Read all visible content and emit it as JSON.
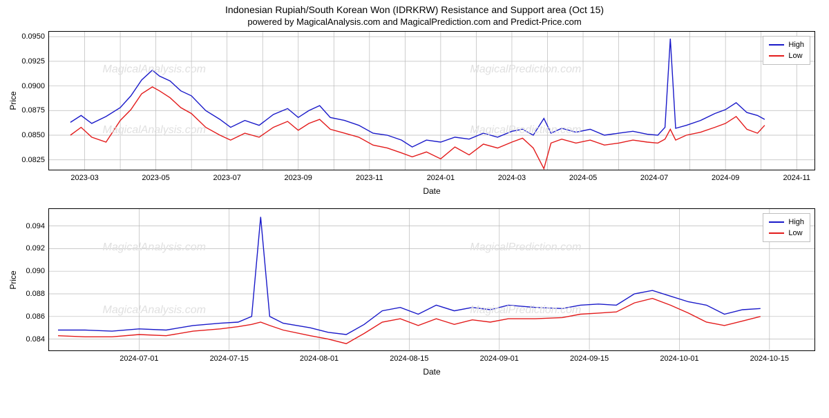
{
  "title": "Indonesian Rupiah/South Korean Won (IDRKRW) Resistance and Support area (Oct 15)",
  "subtitle": "powered by MagicalAnalysis.com and MagicalPrediction.com and Predict-Price.com",
  "watermark_sites": [
    "MagicalAnalysis.com",
    "MagicalPrediction.com"
  ],
  "legend": {
    "high_label": "High",
    "low_label": "Low"
  },
  "colors": {
    "high": "#1919c9",
    "low": "#e31b1b",
    "grid": "#b9b9b9",
    "border": "#000000",
    "watermark": "#e0e0e0",
    "bg": "#ffffff"
  },
  "panel_top": {
    "ylabel": "Price",
    "xlabel": "Date",
    "ylim": [
      0.0815,
      0.0955
    ],
    "yticks": [
      0.0825,
      0.085,
      0.0875,
      0.09,
      0.0925,
      0.095
    ],
    "ytick_labels": [
      "0.0825",
      "0.0850",
      "0.0875",
      "0.0900",
      "0.0925",
      "0.0950"
    ],
    "xlim": [
      0,
      21.5
    ],
    "xticks": [
      1,
      2,
      3,
      4,
      5,
      6,
      7,
      8,
      9,
      10,
      11,
      12,
      13,
      14,
      15,
      16,
      17,
      18,
      19,
      20,
      21
    ],
    "xtick_labels_at": [
      1,
      3,
      5,
      7,
      9,
      11,
      13,
      15,
      17,
      19,
      21
    ],
    "xtick_labels": [
      "2023-03",
      "2023-05",
      "2023-07",
      "2023-09",
      "2023-11",
      "2024-01",
      "2024-03",
      "2024-05",
      "2024-07",
      "2024-09",
      "2024-11"
    ],
    "series_high": [
      [
        0.6,
        0.0863
      ],
      [
        0.9,
        0.087
      ],
      [
        1.2,
        0.0862
      ],
      [
        1.6,
        0.0869
      ],
      [
        2.0,
        0.0878
      ],
      [
        2.3,
        0.089
      ],
      [
        2.6,
        0.0906
      ],
      [
        2.9,
        0.0916
      ],
      [
        3.1,
        0.091
      ],
      [
        3.4,
        0.0905
      ],
      [
        3.7,
        0.0895
      ],
      [
        4.0,
        0.089
      ],
      [
        4.4,
        0.0875
      ],
      [
        4.8,
        0.0866
      ],
      [
        5.1,
        0.0858
      ],
      [
        5.5,
        0.0865
      ],
      [
        5.9,
        0.086
      ],
      [
        6.3,
        0.0871
      ],
      [
        6.7,
        0.0877
      ],
      [
        7.0,
        0.0868
      ],
      [
        7.3,
        0.0875
      ],
      [
        7.6,
        0.088
      ],
      [
        7.9,
        0.0868
      ],
      [
        8.3,
        0.0865
      ],
      [
        8.7,
        0.086
      ],
      [
        9.1,
        0.0852
      ],
      [
        9.5,
        0.085
      ],
      [
        9.9,
        0.0845
      ],
      [
        10.2,
        0.0838
      ],
      [
        10.6,
        0.0845
      ],
      [
        11.0,
        0.0843
      ],
      [
        11.4,
        0.0848
      ],
      [
        11.8,
        0.0846
      ],
      [
        12.2,
        0.0852
      ],
      [
        12.6,
        0.0848
      ],
      [
        13.0,
        0.0854
      ],
      [
        13.3,
        0.0856
      ],
      [
        13.6,
        0.085
      ],
      [
        13.9,
        0.0867
      ],
      [
        14.1,
        0.0852
      ],
      [
        14.4,
        0.0857
      ],
      [
        14.8,
        0.0853
      ],
      [
        15.2,
        0.0856
      ],
      [
        15.6,
        0.085
      ],
      [
        16.0,
        0.0852
      ],
      [
        16.4,
        0.0854
      ],
      [
        16.8,
        0.0851
      ],
      [
        17.1,
        0.085
      ],
      [
        17.3,
        0.0858
      ],
      [
        17.45,
        0.0948
      ],
      [
        17.6,
        0.0857
      ],
      [
        17.9,
        0.086
      ],
      [
        18.3,
        0.0865
      ],
      [
        18.7,
        0.0872
      ],
      [
        19.0,
        0.0876
      ],
      [
        19.3,
        0.0883
      ],
      [
        19.6,
        0.0873
      ],
      [
        19.9,
        0.087
      ],
      [
        20.1,
        0.0866
      ]
    ],
    "series_low": [
      [
        0.6,
        0.085
      ],
      [
        0.9,
        0.0858
      ],
      [
        1.2,
        0.0848
      ],
      [
        1.6,
        0.0843
      ],
      [
        2.0,
        0.0865
      ],
      [
        2.3,
        0.0876
      ],
      [
        2.6,
        0.0892
      ],
      [
        2.9,
        0.0899
      ],
      [
        3.1,
        0.0895
      ],
      [
        3.4,
        0.0888
      ],
      [
        3.7,
        0.0878
      ],
      [
        4.0,
        0.0872
      ],
      [
        4.4,
        0.0858
      ],
      [
        4.8,
        0.085
      ],
      [
        5.1,
        0.0845
      ],
      [
        5.5,
        0.0852
      ],
      [
        5.9,
        0.0848
      ],
      [
        6.3,
        0.0858
      ],
      [
        6.7,
        0.0864
      ],
      [
        7.0,
        0.0855
      ],
      [
        7.3,
        0.0862
      ],
      [
        7.6,
        0.0866
      ],
      [
        7.9,
        0.0856
      ],
      [
        8.3,
        0.0852
      ],
      [
        8.7,
        0.0848
      ],
      [
        9.1,
        0.084
      ],
      [
        9.5,
        0.0837
      ],
      [
        9.9,
        0.0832
      ],
      [
        10.2,
        0.0828
      ],
      [
        10.6,
        0.0833
      ],
      [
        11.0,
        0.0826
      ],
      [
        11.4,
        0.0838
      ],
      [
        11.8,
        0.083
      ],
      [
        12.2,
        0.0841
      ],
      [
        12.6,
        0.0837
      ],
      [
        13.0,
        0.0843
      ],
      [
        13.3,
        0.0847
      ],
      [
        13.6,
        0.0837
      ],
      [
        13.9,
        0.0816
      ],
      [
        14.1,
        0.0842
      ],
      [
        14.4,
        0.0846
      ],
      [
        14.8,
        0.0842
      ],
      [
        15.2,
        0.0845
      ],
      [
        15.6,
        0.084
      ],
      [
        16.0,
        0.0842
      ],
      [
        16.4,
        0.0845
      ],
      [
        16.8,
        0.0843
      ],
      [
        17.1,
        0.0842
      ],
      [
        17.3,
        0.0846
      ],
      [
        17.45,
        0.0856
      ],
      [
        17.6,
        0.0845
      ],
      [
        17.9,
        0.085
      ],
      [
        18.3,
        0.0853
      ],
      [
        18.7,
        0.0858
      ],
      [
        19.0,
        0.0862
      ],
      [
        19.3,
        0.0869
      ],
      [
        19.6,
        0.0856
      ],
      [
        19.9,
        0.0852
      ],
      [
        20.1,
        0.086
      ]
    ]
  },
  "panel_bottom": {
    "ylabel": "Price",
    "xlabel": "Date",
    "ylim": [
      0.083,
      0.0955
    ],
    "yticks": [
      0.084,
      0.086,
      0.088,
      0.09,
      0.092,
      0.094
    ],
    "ytick_labels": [
      "0.084",
      "0.086",
      "0.088",
      "0.090",
      "0.092",
      "0.094"
    ],
    "xlim": [
      0,
      8.5
    ],
    "xticks": [
      1,
      2,
      3,
      4,
      5,
      6,
      7,
      8
    ],
    "xtick_labels": [
      "2024-07-01",
      "2024-07-15",
      "2024-08-01",
      "2024-08-15",
      "2024-09-01",
      "2024-09-15",
      "2024-10-01",
      "2024-10-15"
    ],
    "series_high": [
      [
        0.1,
        0.0848
      ],
      [
        0.4,
        0.0848
      ],
      [
        0.7,
        0.0847
      ],
      [
        1.0,
        0.0849
      ],
      [
        1.3,
        0.0848
      ],
      [
        1.6,
        0.0852
      ],
      [
        1.9,
        0.0854
      ],
      [
        2.1,
        0.0855
      ],
      [
        2.25,
        0.086
      ],
      [
        2.35,
        0.0948
      ],
      [
        2.45,
        0.086
      ],
      [
        2.6,
        0.0854
      ],
      [
        2.9,
        0.085
      ],
      [
        3.1,
        0.0846
      ],
      [
        3.3,
        0.0844
      ],
      [
        3.5,
        0.0853
      ],
      [
        3.7,
        0.0865
      ],
      [
        3.9,
        0.0868
      ],
      [
        4.1,
        0.0862
      ],
      [
        4.3,
        0.087
      ],
      [
        4.5,
        0.0865
      ],
      [
        4.7,
        0.0868
      ],
      [
        4.9,
        0.0866
      ],
      [
        5.1,
        0.087
      ],
      [
        5.4,
        0.0868
      ],
      [
        5.7,
        0.0867
      ],
      [
        5.9,
        0.087
      ],
      [
        6.1,
        0.0871
      ],
      [
        6.3,
        0.087
      ],
      [
        6.5,
        0.088
      ],
      [
        6.7,
        0.0883
      ],
      [
        6.9,
        0.0878
      ],
      [
        7.1,
        0.0873
      ],
      [
        7.3,
        0.087
      ],
      [
        7.5,
        0.0862
      ],
      [
        7.7,
        0.0866
      ],
      [
        7.9,
        0.0867
      ]
    ],
    "series_low": [
      [
        0.1,
        0.0843
      ],
      [
        0.4,
        0.0842
      ],
      [
        0.7,
        0.0842
      ],
      [
        1.0,
        0.0844
      ],
      [
        1.3,
        0.0843
      ],
      [
        1.6,
        0.0847
      ],
      [
        1.9,
        0.0849
      ],
      [
        2.1,
        0.0851
      ],
      [
        2.25,
        0.0853
      ],
      [
        2.35,
        0.0855
      ],
      [
        2.45,
        0.0852
      ],
      [
        2.6,
        0.0848
      ],
      [
        2.9,
        0.0843
      ],
      [
        3.1,
        0.084
      ],
      [
        3.3,
        0.0836
      ],
      [
        3.5,
        0.0845
      ],
      [
        3.7,
        0.0855
      ],
      [
        3.9,
        0.0858
      ],
      [
        4.1,
        0.0852
      ],
      [
        4.3,
        0.0858
      ],
      [
        4.5,
        0.0853
      ],
      [
        4.7,
        0.0857
      ],
      [
        4.9,
        0.0855
      ],
      [
        5.1,
        0.0858
      ],
      [
        5.4,
        0.0858
      ],
      [
        5.7,
        0.0859
      ],
      [
        5.9,
        0.0862
      ],
      [
        6.1,
        0.0863
      ],
      [
        6.3,
        0.0864
      ],
      [
        6.5,
        0.0872
      ],
      [
        6.7,
        0.0876
      ],
      [
        6.9,
        0.087
      ],
      [
        7.1,
        0.0863
      ],
      [
        7.3,
        0.0855
      ],
      [
        7.5,
        0.0852
      ],
      [
        7.7,
        0.0856
      ],
      [
        7.9,
        0.086
      ]
    ]
  }
}
